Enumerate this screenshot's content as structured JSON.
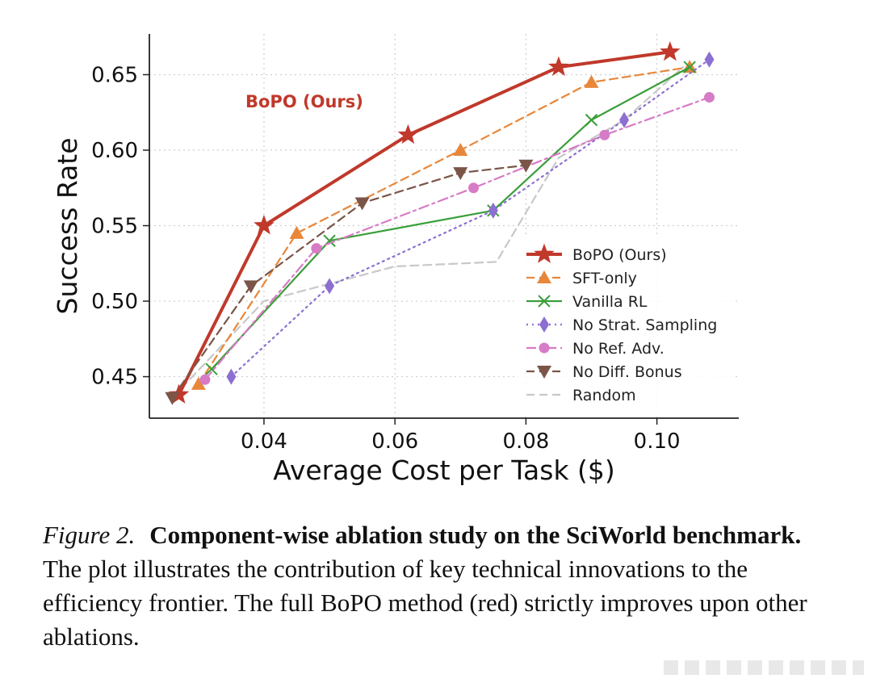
{
  "chart_data": {
    "type": "line",
    "xlabel": "Average Cost per Task ($)",
    "ylabel": "Success Rate",
    "xlim": [
      0.0225,
      0.1125
    ],
    "ylim": [
      0.4225,
      0.677
    ],
    "xticks": [
      0.04,
      0.06,
      0.08,
      0.1
    ],
    "xtick_labels": [
      "0.04",
      "0.06",
      "0.08",
      "0.10"
    ],
    "yticks": [
      0.45,
      0.5,
      0.55,
      0.6,
      0.65
    ],
    "ytick_labels": [
      "0.45",
      "0.50",
      "0.55",
      "0.60",
      "0.65"
    ],
    "grid": "dotted",
    "legend_position": "lower-right",
    "annotation": "BoPO (Ours)",
    "series": [
      {
        "name": "BoPO (Ours)",
        "color": "#c0392b",
        "dash": "solid",
        "marker": "star",
        "x": [
          0.027,
          0.04,
          0.062,
          0.085,
          0.102
        ],
        "y": [
          0.438,
          0.55,
          0.61,
          0.655,
          0.665
        ]
      },
      {
        "name": "SFT-only",
        "color": "#e8873a",
        "dash": "dashed",
        "marker": "triangle-up",
        "x": [
          0.03,
          0.045,
          0.07,
          0.09,
          0.105
        ],
        "y": [
          0.445,
          0.545,
          0.6,
          0.645,
          0.655
        ]
      },
      {
        "name": "Vanilla RL",
        "color": "#3a9e3a",
        "dash": "solid",
        "marker": "x",
        "x": [
          0.032,
          0.05,
          0.075,
          0.09,
          0.105
        ],
        "y": [
          0.455,
          0.54,
          0.56,
          0.62,
          0.655
        ]
      },
      {
        "name": "No Strat. Sampling",
        "color": "#8c6fd1",
        "dash": "dotted",
        "marker": "diamond",
        "x": [
          0.035,
          0.05,
          0.075,
          0.095,
          0.108
        ],
        "y": [
          0.45,
          0.51,
          0.56,
          0.62,
          0.66
        ]
      },
      {
        "name": "No Ref. Adv.",
        "color": "#d77bc6",
        "dash": "dashdot",
        "marker": "circle",
        "x": [
          0.031,
          0.048,
          0.072,
          0.092,
          0.108
        ],
        "y": [
          0.448,
          0.535,
          0.575,
          0.61,
          0.635
        ]
      },
      {
        "name": "No Diff. Bonus",
        "color": "#7a5548",
        "dash": "dashed",
        "marker": "triangle-down",
        "x": [
          0.026,
          0.038,
          0.055,
          0.07,
          0.08
        ],
        "y": [
          0.436,
          0.51,
          0.565,
          0.585,
          0.59
        ]
      },
      {
        "name": "Random",
        "color": "#c8c8c8",
        "dash": "dashed",
        "marker": "none",
        "x": [
          0.026,
          0.04,
          0.06,
          0.0755,
          0.085,
          0.095,
          0.104
        ],
        "y": [
          0.436,
          0.5,
          0.523,
          0.526,
          0.595,
          0.62,
          0.655
        ]
      }
    ]
  },
  "caption": {
    "label": "Figure 2.",
    "title": "Component-wise ablation study on the SciWorld benchmark.",
    "body": " The plot illustrates the contribution of key technical innovations to the efficiency frontier. The full BoPO method (red) strictly improves upon other ablations."
  }
}
